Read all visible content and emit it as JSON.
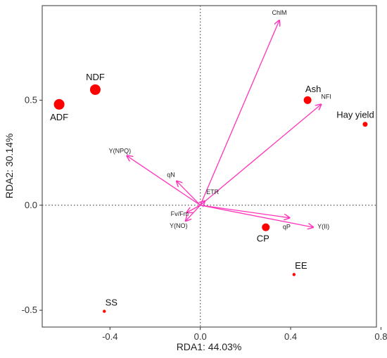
{
  "chart_data": {
    "type": "scatter",
    "title": "",
    "xlabel": "RDA1: 44.03%",
    "ylabel": "RDA2: 30.14%",
    "xlim": [
      -0.7,
      0.78
    ],
    "ylim": [
      -0.58,
      0.95
    ],
    "xticks": [
      {
        "value": -0.4,
        "label": "-0.4"
      },
      {
        "value": 0.0,
        "label": "0.0"
      },
      {
        "value": 0.4,
        "label": "0.4"
      },
      {
        "value": 0.8,
        "label": "0.8"
      }
    ],
    "yticks": [
      {
        "value": -0.5,
        "label": "-0.5"
      },
      {
        "value": 0.0,
        "label": "0.0"
      },
      {
        "value": 0.5,
        "label": "0.5"
      }
    ],
    "reference_lines": [
      "x = 0",
      "y = 0"
    ],
    "grid": false,
    "point_color": "#ff0000",
    "arrow_color": "#ff33bb",
    "points": [
      {
        "label": "NDF",
        "x": -0.465,
        "y": 0.55,
        "size": "large",
        "label_pos": "above"
      },
      {
        "label": "ADF",
        "x": -0.625,
        "y": 0.48,
        "size": "large",
        "label_pos": "below"
      },
      {
        "label": "Ash",
        "x": 0.475,
        "y": 0.5,
        "size": "medium",
        "label_pos": "above"
      },
      {
        "label": "Hay yield",
        "x": 0.73,
        "y": 0.385,
        "size": "small",
        "label_pos": "above"
      },
      {
        "label": "CP",
        "x": 0.29,
        "y": -0.105,
        "size": "medium",
        "label_pos": "below-left"
      },
      {
        "label": "EE",
        "x": 0.415,
        "y": -0.33,
        "size": "tiny",
        "label_pos": "above"
      },
      {
        "label": "SS",
        "x": -0.425,
        "y": -0.505,
        "size": "tiny",
        "label_pos": "above"
      }
    ],
    "arrows": [
      {
        "label": "ChlM",
        "x": 0.35,
        "y": 0.88
      },
      {
        "label": "NFI",
        "x": 0.535,
        "y": 0.48
      },
      {
        "label": "Y(NPQ)",
        "x": -0.325,
        "y": 0.235
      },
      {
        "label": "qN",
        "x": -0.105,
        "y": 0.115
      },
      {
        "label": "ETR",
        "x": 0.02,
        "y": 0.02
      },
      {
        "label": "Fv/Fm",
        "x": -0.06,
        "y": -0.035
      },
      {
        "label": "Y(NO)",
        "x": -0.065,
        "y": -0.075
      },
      {
        "label": "Y(II)",
        "x": 0.5,
        "y": -0.105
      },
      {
        "label": "qP",
        "x": 0.395,
        "y": -0.06
      }
    ]
  }
}
